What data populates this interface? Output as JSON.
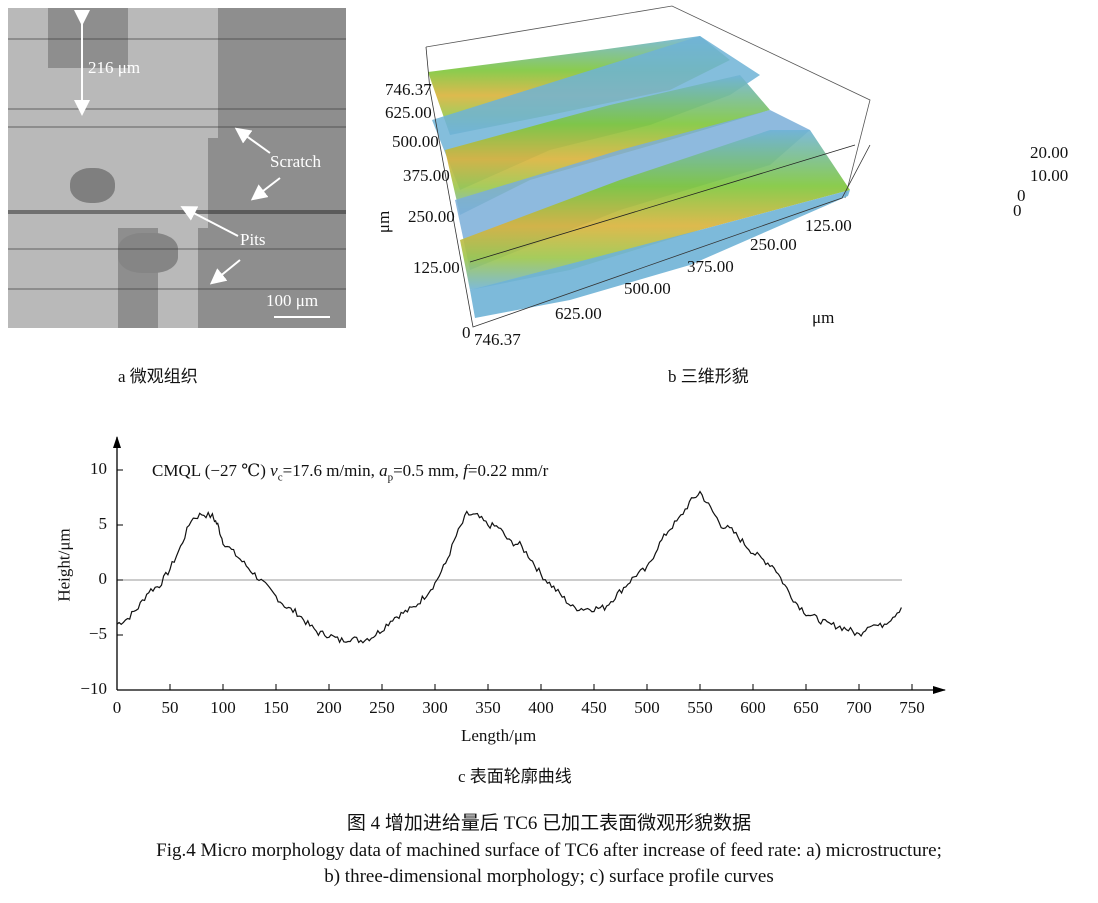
{
  "panel_a": {
    "annotation_width": "216 μm",
    "label_scratch": "Scratch",
    "label_pits": "Pits",
    "scale_bar": "100 μm",
    "caption": "a  微观组织"
  },
  "panel_b": {
    "y_ticks": [
      "746.37",
      "625.00",
      "500.00",
      "375.00",
      "250.00",
      "125.00",
      "0"
    ],
    "x_ticks": [
      "746.37",
      "625.00",
      "500.00",
      "375.00",
      "250.00",
      "125.00",
      "0"
    ],
    "z_ticks": [
      "20.00",
      "10.00",
      "0"
    ],
    "y_unit": "μm",
    "x_unit": "μm",
    "caption": "b  三维形貌",
    "colormap": [
      "#3b4fb8",
      "#6fb3d6",
      "#7ec63a",
      "#d9b23a",
      "#e08a3a"
    ]
  },
  "chart_data": {
    "type": "line",
    "annotation": "CMQL (−27 ℃) v_c=17.6 m/min, a_p=0.5 mm, f=0.22 mm/r",
    "annotation_parts": {
      "pre": "CMQL (−27 ℃) ",
      "v": "v",
      "vsub": "c",
      "vval": "=17.6 m/min, ",
      "a": "a",
      "asub": "p",
      "aval": "=0.5 mm, ",
      "f": "f",
      "fval": "=0.22 mm/r"
    },
    "xlabel": "Length/μm",
    "ylabel": "Height/μm",
    "xlim": [
      0,
      750
    ],
    "ylim": [
      -10,
      10
    ],
    "x_ticks": [
      "0",
      "50",
      "100",
      "150",
      "200",
      "250",
      "300",
      "350",
      "400",
      "450",
      "500",
      "550",
      "600",
      "650",
      "700",
      "750"
    ],
    "y_ticks": [
      "10",
      "5",
      "0",
      "−5",
      "−10"
    ],
    "reference_line_y": 0,
    "series": [
      {
        "x": [
          0,
          10,
          20,
          30,
          40,
          50,
          60,
          70,
          80,
          90,
          95,
          100,
          110,
          120,
          130,
          140,
          150,
          160,
          170,
          180,
          190,
          200,
          210,
          220,
          230,
          240,
          250,
          260,
          270,
          280,
          290,
          300,
          310,
          320,
          330,
          340,
          350,
          360,
          370,
          380,
          390,
          400,
          410,
          420,
          430,
          440,
          450,
          460,
          470,
          480,
          490,
          500,
          510,
          520,
          530,
          540,
          550,
          560,
          570,
          580,
          590,
          600,
          610,
          620,
          630,
          640,
          650,
          660,
          670,
          680,
          690,
          700,
          710,
          720,
          730,
          740
        ],
        "y": [
          -4,
          -3.5,
          -2.5,
          -1,
          -0.5,
          1,
          3,
          5.5,
          6,
          5.8,
          5,
          3.5,
          2.5,
          1.5,
          0.5,
          -0.5,
          -1.5,
          -2.5,
          -3,
          -4,
          -4.8,
          -5,
          -5.5,
          -5.3,
          -5.5,
          -5.2,
          -4.5,
          -3.5,
          -3,
          -2.5,
          -1.5,
          -0.3,
          1.5,
          4,
          6,
          5.8,
          5,
          4.8,
          3.5,
          3.2,
          2,
          0.5,
          -0.5,
          -1.5,
          -2.5,
          -2.6,
          -2.6,
          -2.5,
          -1.5,
          -0.5,
          0.5,
          1,
          3,
          4.5,
          5.5,
          7,
          8,
          6.5,
          5,
          4.5,
          3.5,
          2.5,
          1.8,
          1.2,
          -0.5,
          -2,
          -3,
          -3.5,
          -4,
          -4.2,
          -4.5,
          -5,
          -4,
          -4.2,
          -3.5,
          -2.5
        ]
      }
    ],
    "caption": "c  表面轮廓曲线"
  },
  "figure_caption": {
    "cn": "图 4    增加进给量后 TC6 已加工表面微观形貌数据",
    "en_line1": "Fig.4 Micro morphology data of machined surface of TC6 after increase of feed rate: a) microstructure;",
    "en_line2": "b) three-dimensional morphology; c) surface profile curves"
  }
}
